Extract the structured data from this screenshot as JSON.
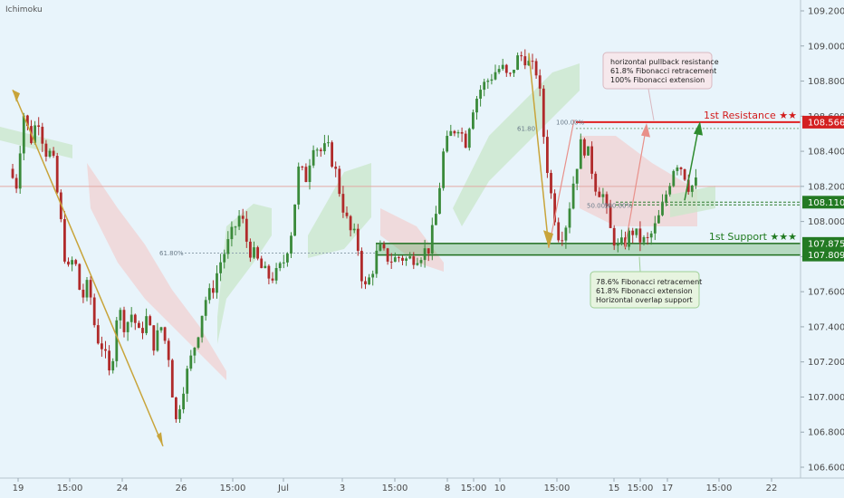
{
  "indicator_label": "Ichimoku",
  "colors": {
    "background": "#e8f4fb",
    "up": "#3a8a3a",
    "down": "#b02a2a",
    "resistance": "#e02020",
    "support": "#2e8b2e",
    "support_zone": "#5aa55a",
    "trend_line": "#c8a43a",
    "projection_up": "#2e8b2e",
    "projection_red": "#e8908a",
    "cloud_green": "#c9e7c9",
    "cloud_red": "#f1d2d2",
    "axis_text": "#4a4a4a",
    "grid": "#d6e3ea"
  },
  "chart_data": {
    "type": "candlestick",
    "title": "",
    "indicator": "Ichimoku",
    "ylim": [
      106.55,
      109.25
    ],
    "y_ticks": [
      "109.200",
      "109.000",
      "108.800",
      "108.600",
      "108.400",
      "108.200",
      "108.000",
      "107.800",
      "107.600",
      "107.400",
      "107.200",
      "107.000",
      "106.800",
      "106.600"
    ],
    "x_ticks": [
      "19",
      "15:00",
      "24",
      "26",
      "15:00",
      "Jul",
      "3",
      "15:00",
      "8",
      "15:00",
      "10",
      "15:00",
      "15",
      "15:00",
      "17",
      "15:00",
      "22"
    ],
    "price_path": [
      [
        0,
        108.3
      ],
      [
        8,
        108.2
      ],
      [
        16,
        108.62
      ],
      [
        24,
        108.46
      ],
      [
        32,
        108.6
      ],
      [
        40,
        108.4
      ],
      [
        48,
        108.38
      ],
      [
        56,
        108.05
      ],
      [
        64,
        107.7
      ],
      [
        72,
        107.8
      ],
      [
        80,
        107.55
      ],
      [
        88,
        107.65
      ],
      [
        96,
        107.35
      ],
      [
        104,
        107.28
      ],
      [
        112,
        107.1
      ],
      [
        120,
        107.52
      ],
      [
        128,
        107.4
      ],
      [
        136,
        107.48
      ],
      [
        144,
        107.35
      ],
      [
        152,
        107.45
      ],
      [
        160,
        107.3
      ],
      [
        168,
        107.4
      ],
      [
        176,
        107.25
      ],
      [
        184,
        106.85
      ],
      [
        192,
        107.05
      ],
      [
        200,
        107.2
      ],
      [
        208,
        107.35
      ],
      [
        216,
        107.55
      ],
      [
        224,
        107.6
      ],
      [
        232,
        107.75
      ],
      [
        240,
        107.85
      ],
      [
        248,
        107.95
      ],
      [
        256,
        108.05
      ],
      [
        264,
        107.85
      ],
      [
        272,
        107.8
      ],
      [
        280,
        107.72
      ],
      [
        288,
        107.68
      ],
      [
        296,
        107.7
      ],
      [
        304,
        107.78
      ],
      [
        312,
        107.95
      ],
      [
        320,
        108.3
      ],
      [
        328,
        108.25
      ],
      [
        336,
        108.45
      ],
      [
        344,
        108.4
      ],
      [
        352,
        108.42
      ],
      [
        360,
        108.3
      ],
      [
        368,
        108.1
      ],
      [
        376,
        107.95
      ],
      [
        384,
        107.9
      ],
      [
        392,
        107.6
      ],
      [
        400,
        107.7
      ],
      [
        408,
        107.85
      ],
      [
        416,
        107.8
      ],
      [
        424,
        107.78
      ],
      [
        432,
        107.8
      ],
      [
        440,
        107.78
      ],
      [
        448,
        107.8
      ],
      [
        456,
        107.82
      ],
      [
        464,
        107.85
      ],
      [
        472,
        108.05
      ],
      [
        480,
        108.4
      ],
      [
        488,
        108.5
      ],
      [
        496,
        108.55
      ],
      [
        504,
        108.45
      ],
      [
        512,
        108.65
      ],
      [
        520,
        108.75
      ],
      [
        528,
        108.8
      ],
      [
        536,
        108.85
      ],
      [
        544,
        108.88
      ],
      [
        552,
        108.8
      ],
      [
        560,
        108.92
      ],
      [
        568,
        108.95
      ],
      [
        576,
        108.88
      ],
      [
        584,
        108.85
      ],
      [
        592,
        108.4
      ],
      [
        600,
        108.1
      ],
      [
        608,
        107.9
      ],
      [
        616,
        108.0
      ],
      [
        624,
        108.25
      ],
      [
        632,
        108.45
      ],
      [
        640,
        108.38
      ],
      [
        648,
        108.2
      ],
      [
        656,
        108.15
      ],
      [
        664,
        107.95
      ],
      [
        672,
        107.85
      ],
      [
        680,
        107.88
      ],
      [
        688,
        107.95
      ],
      [
        696,
        107.9
      ],
      [
        704,
        107.88
      ],
      [
        712,
        107.95
      ],
      [
        720,
        108.05
      ],
      [
        728,
        108.2
      ],
      [
        736,
        108.35
      ],
      [
        744,
        108.3
      ],
      [
        752,
        108.18
      ],
      [
        756,
        108.22
      ]
    ],
    "levels": [
      {
        "name": "1st Resistance ★★",
        "value": 108.566,
        "label": "108.566",
        "kind": "resistance"
      },
      {
        "name": "",
        "value": 108.11,
        "label": "108.110",
        "kind": "pivot"
      },
      {
        "name": "1st Support ★★★",
        "value": 107.875,
        "label": "107.875",
        "kind": "support"
      },
      {
        "name": "",
        "value": 107.809,
        "label": "107.809",
        "kind": "support"
      }
    ],
    "horizontal_ref": 108.2,
    "fib_labels": {
      "left_618": "61.80%",
      "top_618": "61.80",
      "top_100": "100.00%",
      "mid_500": "50.00%",
      "mid_100": "100.00%"
    },
    "callout_top": [
      "horizontal pullback resistance",
      "61.8% Fibonacci retracement",
      "100% Fibonacci extension"
    ],
    "callout_bottom": [
      "78.6% Fibonacci retracement",
      "61.8% Fibonacci extension",
      "Horizontal overlap support"
    ]
  }
}
